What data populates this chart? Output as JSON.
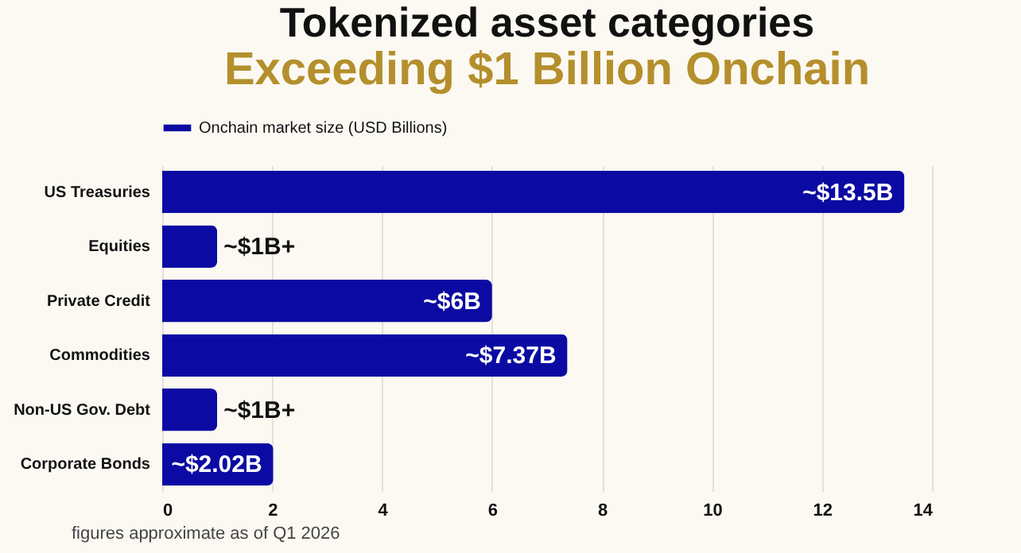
{
  "chart_data": {
    "type": "bar",
    "orientation": "horizontal",
    "title": "Tokenized asset categories",
    "subtitle": "Exceeding $1 Billion Onchain",
    "categories": [
      "US Treasuries",
      "Equities",
      "Private Credit",
      "Commodities",
      "Non-US Gov. Debt",
      "Corporate Bonds"
    ],
    "series": [
      {
        "name": "Onchain market size (USD Billions)",
        "color": "#0b0ba3",
        "values": [
          13.5,
          1,
          6,
          7.37,
          1,
          2.02
        ],
        "value_labels": [
          "~$13.5B",
          "~$1B+",
          "~$6B",
          "~$7.37B",
          "~$1B+",
          "~$2.02B"
        ]
      }
    ],
    "xlim": [
      0,
      14
    ],
    "xticks": [
      0,
      2,
      4,
      6,
      8,
      10,
      12,
      14
    ],
    "grid": "x",
    "legend": "top",
    "annotations": [
      "figures approximate as of Q1 2026"
    ]
  }
}
